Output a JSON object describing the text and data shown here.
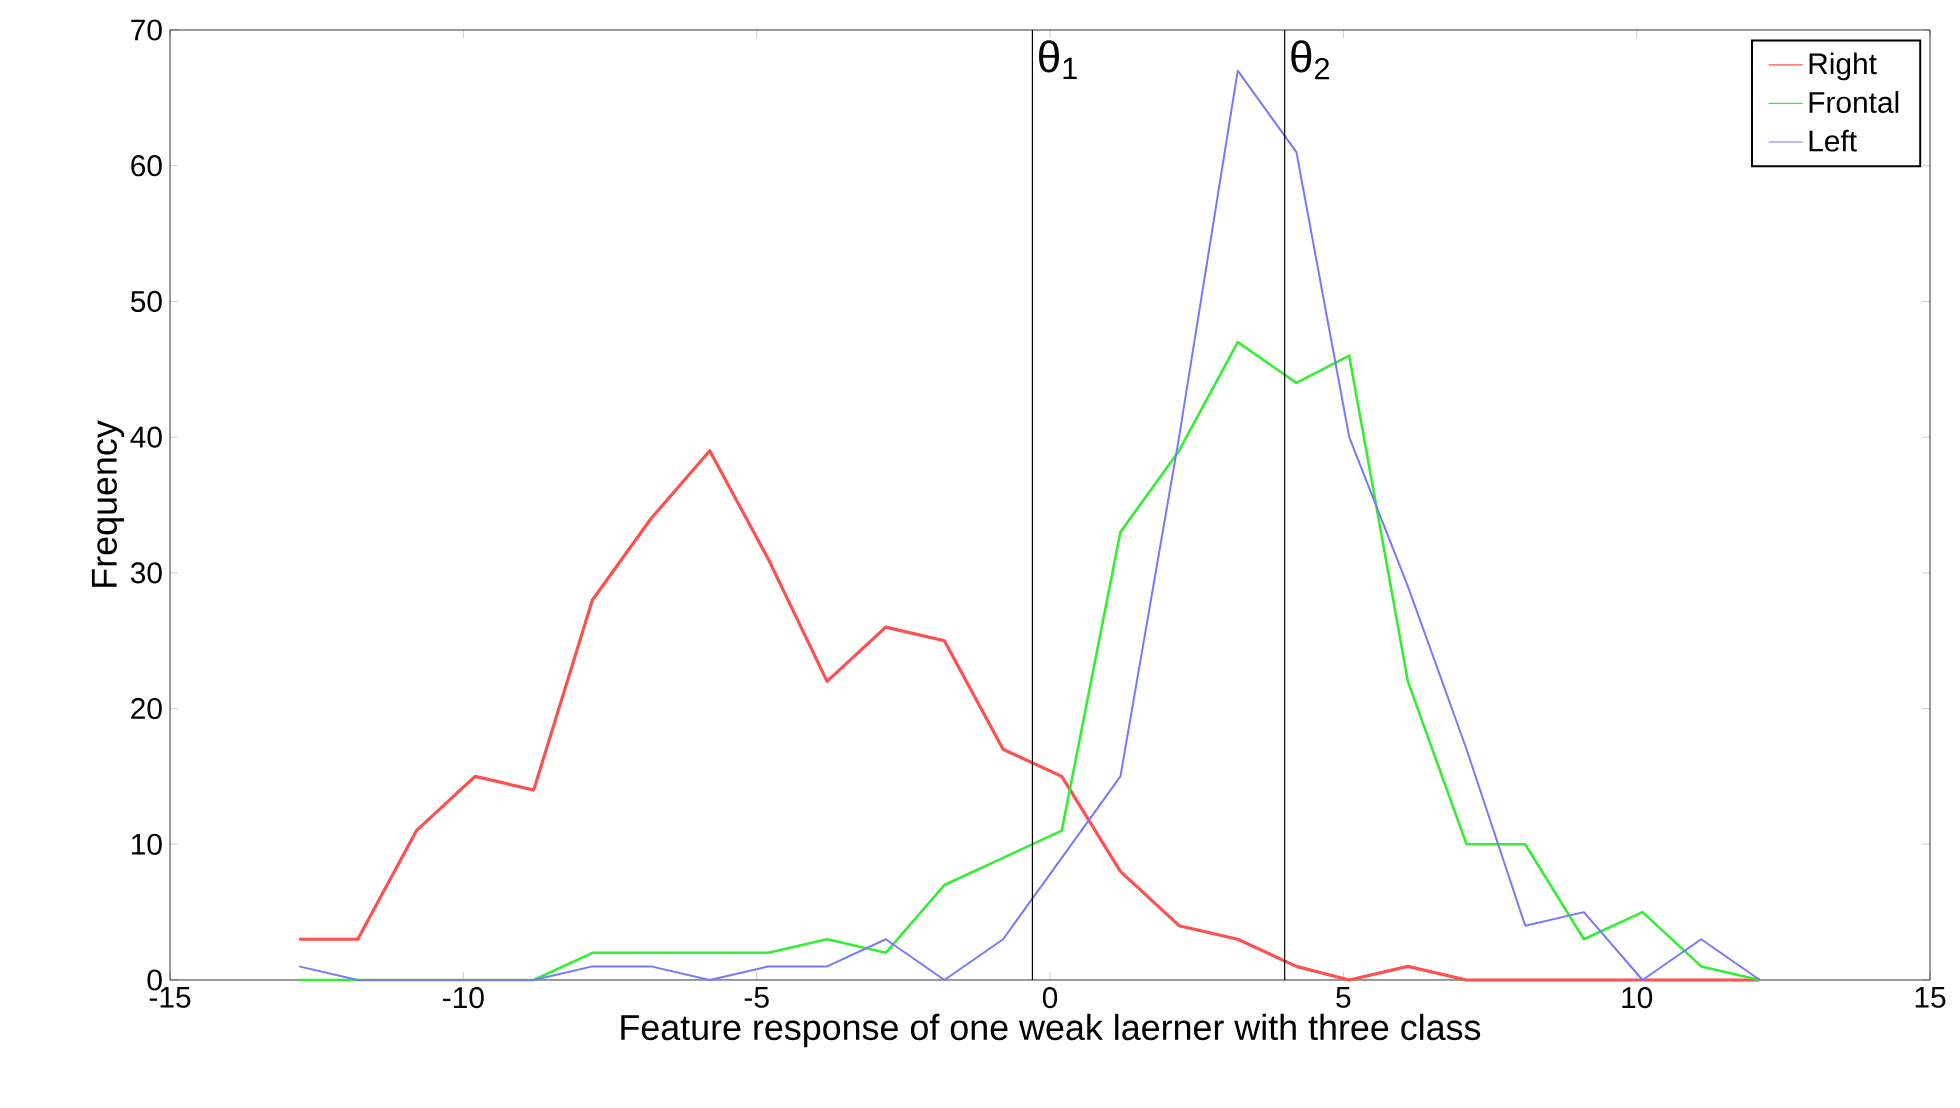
{
  "chart_data": {
    "type": "line",
    "xlabel": "Feature response of one weak laerner with three class",
    "ylabel": "Frequency",
    "x": [
      -12.8,
      -11.8,
      -10.8,
      -9.8,
      -8.8,
      -7.8,
      -6.8,
      -5.8,
      -4.8,
      -3.8,
      -2.8,
      -1.8,
      -0.8,
      0.2,
      1.2,
      2.2,
      3.2,
      4.2,
      5.1,
      6.1,
      7.1,
      8.1,
      9.1,
      10.1,
      11.1,
      12.1
    ],
    "series": [
      {
        "name": "Right",
        "color": "#ff5050",
        "values": [
          3,
          3,
          11,
          15,
          14,
          28,
          34,
          39,
          31,
          22,
          26,
          25,
          17,
          15,
          8,
          4,
          3,
          1,
          0,
          1,
          0,
          0,
          0,
          0,
          0,
          0
        ]
      },
      {
        "name": "Frontal",
        "color": "#33ee33",
        "values": [
          0,
          0,
          0,
          0,
          0,
          2,
          2,
          2,
          2,
          3,
          2,
          7,
          9,
          11,
          33,
          39,
          47,
          44,
          46,
          22,
          10,
          10,
          3,
          5,
          1,
          0
        ]
      },
      {
        "name": "Left",
        "color": "#7777ff",
        "values": [
          1,
          0,
          0,
          0,
          0,
          1,
          1,
          0,
          1,
          1,
          3,
          0,
          3,
          9,
          15,
          40,
          67,
          61,
          40,
          29,
          17,
          4,
          5,
          0,
          3,
          0
        ]
      }
    ],
    "xlim": [
      -15,
      15
    ],
    "xticks": [
      -15,
      -10,
      -5,
      0,
      5,
      10,
      15
    ],
    "ylim": [
      0,
      70
    ],
    "yticks": [
      0,
      10,
      20,
      30,
      40,
      50,
      60,
      70
    ],
    "ref_lines": [
      {
        "axis": "x",
        "value": -0.3,
        "label": "θ$_{1}$"
      },
      {
        "axis": "x",
        "value": 4.0,
        "label": "θ$_{2}$"
      }
    ],
    "grid": false,
    "legend": "top right"
  }
}
